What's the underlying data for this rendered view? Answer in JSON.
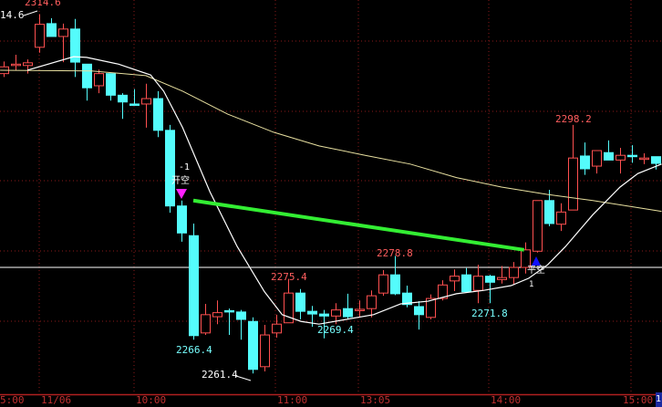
{
  "chart_data": {
    "type": "candlestick",
    "colors": {
      "up": "#ff5050",
      "down": "#54fcfc",
      "ma_short": "#ffffff",
      "ma_long": "#e8e0a0",
      "trendline": "#33ee33",
      "grid": "#8b1a1a",
      "axis": "#b02020",
      "short_signal": "#ff20ff",
      "cover_signal": "#1010ff"
    },
    "grid": true,
    "candles": [
      [
        2305.8,
        2307.6,
        2305.3,
        2306.8
      ],
      [
        2307.0,
        2308.6,
        2306.3,
        2307.2
      ],
      [
        2307.0,
        2307.9,
        2305.8,
        2307.4
      ],
      [
        2309.7,
        2314.6,
        2308.9,
        2313.1
      ],
      [
        2313.2,
        2314.0,
        2311.3,
        2311.3
      ],
      [
        2311.3,
        2313.2,
        2307.5,
        2312.4
      ],
      [
        2312.4,
        2313.9,
        2305.3,
        2307.5
      ],
      [
        2307.2,
        2307.2,
        2301.8,
        2303.7
      ],
      [
        2304.0,
        2306.4,
        2302.9,
        2305.8
      ],
      [
        2305.8,
        2305.8,
        2301.8,
        2302.6
      ],
      [
        2302.6,
        2302.9,
        2299.1,
        2301.6
      ],
      [
        2301.3,
        2303.5,
        2301.2,
        2301.2
      ],
      [
        2301.3,
        2304.3,
        2297.8,
        2302.1
      ],
      [
        2302.1,
        2303.2,
        2296.4,
        2297.4
      ],
      [
        2297.4,
        2298.2,
        2285.2,
        2286.2
      ],
      [
        2286.2,
        2287.0,
        2280.9,
        2282.2
      ],
      [
        2281.8,
        2283.6,
        2266.4,
        2267.0
      ],
      [
        2267.4,
        2271.7,
        2267.1,
        2270.1
      ],
      [
        2269.8,
        2272.2,
        2268.7,
        2270.4
      ],
      [
        2270.7,
        2271.0,
        2267.1,
        2270.6
      ],
      [
        2270.5,
        2270.8,
        2266.4,
        2269.4
      ],
      [
        2269.1,
        2269.7,
        2261.4,
        2262.0
      ],
      [
        2262.4,
        2268.6,
        2261.7,
        2267.1
      ],
      [
        2267.4,
        2270.1,
        2266.7,
        2268.7
      ],
      [
        2268.9,
        2275.4,
        2268.9,
        2273.3
      ],
      [
        2273.3,
        2273.9,
        2269.4,
        2270.6
      ],
      [
        2270.6,
        2271.4,
        2268.3,
        2270.2
      ],
      [
        2270.2,
        2270.8,
        2266.6,
        2269.9
      ],
      [
        2269.9,
        2271.8,
        2268.7,
        2270.8
      ],
      [
        2271.0,
        2273.2,
        2269.4,
        2269.8
      ],
      [
        2270.8,
        2272.2,
        2269.8,
        2270.9
      ],
      [
        2271.0,
        2273.7,
        2269.7,
        2272.9
      ],
      [
        2273.3,
        2276.7,
        2272.9,
        2276.0
      ],
      [
        2276.0,
        2278.8,
        2273.0,
        2273.2
      ],
      [
        2273.3,
        2274.4,
        2271.2,
        2271.6
      ],
      [
        2271.3,
        2272.1,
        2267.9,
        2270.1
      ],
      [
        2269.7,
        2273.1,
        2269.4,
        2272.5
      ],
      [
        2272.5,
        2275.2,
        2272.2,
        2274.5
      ],
      [
        2275.1,
        2276.8,
        2273.6,
        2275.8
      ],
      [
        2276.0,
        2277.0,
        2273.5,
        2273.5
      ],
      [
        2273.7,
        2277.5,
        2271.8,
        2275.8
      ],
      [
        2275.8,
        2276.0,
        2271.8,
        2274.9
      ],
      [
        2275.3,
        2277.3,
        2274.7,
        2275.6
      ],
      [
        2275.6,
        2277.9,
        2274.5,
        2277.1
      ],
      [
        2277.1,
        2280.8,
        2276.2,
        2279.7
      ],
      [
        2279.5,
        2287.0,
        2279.3,
        2287.0
      ],
      [
        2287.0,
        2288.6,
        2283.2,
        2283.6
      ],
      [
        2283.5,
        2286.6,
        2282.5,
        2285.3
      ],
      [
        2285.6,
        2298.2,
        2285.6,
        2293.3
      ],
      [
        2293.6,
        2295.6,
        2290.8,
        2291.7
      ],
      [
        2292.1,
        2294.4,
        2291.0,
        2294.4
      ],
      [
        2294.1,
        2295.9,
        2293.0,
        2293.0
      ],
      [
        2293.0,
        2294.8,
        2291.0,
        2293.7
      ],
      [
        2293.7,
        2295.2,
        2292.6,
        2293.5
      ],
      [
        2293.3,
        2294.0,
        2292.4,
        2293.3
      ],
      [
        2293.5,
        2293.5,
        2291.6,
        2292.5
      ]
    ],
    "ma_short": [
      [
        2,
        2306.3
      ],
      [
        5.9,
        2308.3
      ],
      [
        7,
        2308.2
      ],
      [
        9.7,
        2307.2
      ],
      [
        12.4,
        2305.6
      ],
      [
        13.5,
        2303.2
      ],
      [
        15.1,
        2297.8
      ],
      [
        17.4,
        2288.3
      ],
      [
        19.7,
        2280.2
      ],
      [
        22,
        2273.5
      ],
      [
        23.5,
        2270.1
      ],
      [
        25.1,
        2269.1
      ],
      [
        26.6,
        2268.7
      ],
      [
        28.9,
        2269.4
      ],
      [
        31.2,
        2270.1
      ],
      [
        33.5,
        2271.7
      ],
      [
        35.8,
        2272.1
      ],
      [
        38.2,
        2273.2
      ],
      [
        40.5,
        2273.7
      ],
      [
        42.8,
        2274.4
      ],
      [
        44.3,
        2275.5
      ],
      [
        45.9,
        2277.5
      ],
      [
        47.4,
        2280.2
      ],
      [
        49.7,
        2284.9
      ],
      [
        52,
        2289.0
      ],
      [
        53.5,
        2291.0
      ],
      [
        55.5,
        2292.4
      ]
    ],
    "ma_long": [
      [
        -0.3,
        2306.3
      ],
      [
        7.4,
        2306.2
      ],
      [
        12,
        2305.5
      ],
      [
        15.1,
        2303.2
      ],
      [
        18.9,
        2299.8
      ],
      [
        22.8,
        2297.1
      ],
      [
        26.6,
        2295.1
      ],
      [
        30.5,
        2293.7
      ],
      [
        34.3,
        2292.4
      ],
      [
        38.2,
        2290.4
      ],
      [
        42,
        2289.0
      ],
      [
        45.9,
        2287.9
      ],
      [
        49.7,
        2287.0
      ],
      [
        55.5,
        2285.4
      ]
    ],
    "trendline": [
      [
        16,
        2287.0
      ],
      [
        43.9,
        2279.7
      ]
    ],
    "reference_price": 2277.1,
    "price_labels": {
      "top_high": "2314.6",
      "left_cut": "14.6",
      "low_a": "2266.4",
      "low_b": "2261.4",
      "high_a": "2275.4",
      "low_c": "2269.4",
      "high_b": "2278.8",
      "low_d": "2271.8",
      "high_c": "2298.2"
    },
    "signals": {
      "short_count": "-1",
      "short_label": "开空",
      "cover_label": "平空",
      "cover_count": "1"
    },
    "x_ticks": [
      "5:00",
      "11/06",
      "10:00",
      "11:00",
      "13:05",
      "14:00",
      "15:00"
    ],
    "end_marker": "1"
  }
}
